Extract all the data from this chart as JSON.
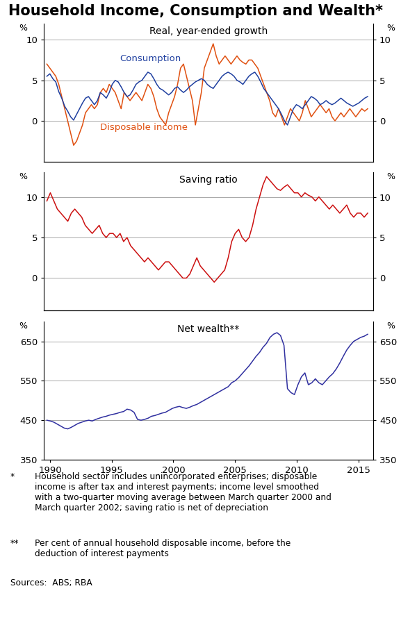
{
  "title": "Household Income, Consumption and Wealth*",
  "title_fontsize": 15,
  "panel1_title": "Real, year-ended growth",
  "panel2_title": "Saving ratio",
  "panel3_title": "Net wealth**",
  "consumption_color": "#2040a0",
  "income_color": "#e05010",
  "saving_color": "#cc1010",
  "wealth_color": "#3030a0",
  "panel1_ylim": [
    -5,
    12
  ],
  "panel2_ylim": [
    -4,
    13
  ],
  "panel3_ylim": [
    350,
    700
  ],
  "panel1_yticks": [
    0,
    5,
    10
  ],
  "panel2_yticks": [
    0,
    5,
    10
  ],
  "panel3_yticks": [
    350,
    450,
    550,
    650
  ],
  "xlim_start": 1989.5,
  "xlim_end": 2016.2,
  "xticks": [
    1990,
    1995,
    2000,
    2005,
    2010,
    2015
  ],
  "consumption_data": [
    5.5,
    5.8,
    5.2,
    4.8,
    3.6,
    2.8,
    1.8,
    1.2,
    0.5,
    0.1,
    0.8,
    1.5,
    2.2,
    2.8,
    3.0,
    2.5,
    2.0,
    2.5,
    3.5,
    3.2,
    2.8,
    3.5,
    4.5,
    5.0,
    4.8,
    4.2,
    3.5,
    3.0,
    3.2,
    3.8,
    4.5,
    4.8,
    5.0,
    5.5,
    6.0,
    5.8,
    5.2,
    4.5,
    4.0,
    3.8,
    3.5,
    3.2,
    3.5,
    4.0,
    4.2,
    3.8,
    3.5,
    3.8,
    4.2,
    4.5,
    4.8,
    5.0,
    5.2,
    5.0,
    4.5,
    4.2,
    4.0,
    4.5,
    5.0,
    5.5,
    5.8,
    6.0,
    5.8,
    5.5,
    5.0,
    4.8,
    4.5,
    5.0,
    5.5,
    5.8,
    6.0,
    5.5,
    4.8,
    4.0,
    3.5,
    3.0,
    2.5,
    2.0,
    1.5,
    0.8,
    0.0,
    -0.5,
    0.5,
    1.5,
    2.0,
    1.8,
    1.5,
    2.0,
    2.5,
    3.0,
    2.8,
    2.5,
    2.0,
    2.2,
    2.5,
    2.2,
    2.0,
    2.2,
    2.5,
    2.8,
    2.5,
    2.2,
    2.0,
    1.8,
    2.0,
    2.2,
    2.5,
    2.8,
    3.0
  ],
  "income_data": [
    7.0,
    6.5,
    6.0,
    5.5,
    4.5,
    3.0,
    1.5,
    0.0,
    -1.5,
    -3.0,
    -2.5,
    -1.5,
    -0.5,
    1.0,
    1.5,
    2.0,
    1.5,
    2.0,
    3.5,
    4.0,
    3.5,
    4.5,
    4.0,
    3.5,
    2.5,
    1.5,
    3.5,
    3.0,
    2.5,
    3.0,
    3.5,
    3.0,
    2.5,
    3.5,
    4.5,
    4.0,
    3.0,
    1.5,
    0.5,
    0.0,
    -0.5,
    1.0,
    2.0,
    3.0,
    4.5,
    6.5,
    7.0,
    5.5,
    4.0,
    2.5,
    -0.5,
    1.5,
    3.5,
    6.5,
    7.5,
    8.5,
    9.5,
    8.0,
    7.0,
    7.5,
    8.0,
    7.5,
    7.0,
    7.5,
    8.0,
    7.5,
    7.2,
    7.0,
    7.5,
    7.5,
    7.0,
    6.5,
    5.5,
    4.5,
    3.5,
    2.5,
    1.0,
    0.5,
    1.5,
    0.5,
    -0.5,
    0.5,
    1.5,
    1.0,
    0.5,
    0.0,
    1.0,
    2.5,
    1.5,
    0.5,
    1.0,
    1.5,
    2.0,
    1.5,
    1.0,
    1.5,
    0.5,
    0.0,
    0.5,
    1.0,
    0.5,
    1.0,
    1.5,
    1.0,
    0.5,
    1.0,
    1.5,
    1.2,
    1.5
  ],
  "saving_data": [
    9.5,
    10.5,
    9.5,
    8.5,
    8.0,
    7.5,
    7.0,
    8.0,
    8.5,
    8.0,
    7.5,
    6.5,
    6.0,
    5.5,
    6.0,
    6.5,
    5.5,
    5.0,
    5.5,
    5.5,
    5.0,
    5.5,
    4.5,
    5.0,
    4.0,
    3.5,
    3.0,
    2.5,
    2.0,
    2.5,
    2.0,
    1.5,
    1.0,
    1.5,
    2.0,
    2.0,
    1.5,
    1.0,
    0.5,
    0.0,
    0.0,
    0.5,
    1.5,
    2.5,
    1.5,
    1.0,
    0.5,
    0.0,
    -0.5,
    0.0,
    0.5,
    1.0,
    2.5,
    4.5,
    5.5,
    6.0,
    5.0,
    4.5,
    5.0,
    6.5,
    8.5,
    10.0,
    11.5,
    12.5,
    12.0,
    11.5,
    11.0,
    10.8,
    11.2,
    11.5,
    11.0,
    10.5,
    10.5,
    10.0,
    10.5,
    10.2,
    10.0,
    9.5,
    10.0,
    9.5,
    9.0,
    8.5,
    9.0,
    8.5,
    8.0,
    8.5,
    9.0,
    8.0,
    7.5,
    8.0,
    8.0,
    7.5,
    8.0
  ],
  "wealth_data": [
    450,
    448,
    445,
    440,
    435,
    430,
    428,
    432,
    437,
    442,
    445,
    448,
    450,
    448,
    452,
    455,
    458,
    460,
    463,
    465,
    467,
    470,
    472,
    478,
    476,
    470,
    452,
    450,
    452,
    455,
    460,
    462,
    465,
    468,
    470,
    475,
    480,
    483,
    485,
    482,
    480,
    483,
    487,
    490,
    495,
    500,
    505,
    510,
    515,
    520,
    525,
    530,
    535,
    545,
    550,
    558,
    568,
    578,
    588,
    600,
    612,
    622,
    635,
    645,
    660,
    668,
    672,
    665,
    640,
    530,
    520,
    515,
    540,
    560,
    570,
    540,
    545,
    555,
    545,
    540,
    550,
    560,
    568,
    580,
    595,
    612,
    628,
    640,
    650,
    655,
    660,
    663,
    668
  ],
  "footnote1_star": "*",
  "footnote1_text": "Household sector includes unincorporated enterprises; disposable\nincome is after tax and interest payments; income level smoothed\nwith a two-quarter moving average between March quarter 2000 and\nMarch quarter 2002; saving ratio is net of depreciation",
  "footnote2_star": "**",
  "footnote2_text": "Per cent of annual household disposable income, before the\ndeduction of interest payments",
  "sources_text": "Sources:  ABS; RBA"
}
